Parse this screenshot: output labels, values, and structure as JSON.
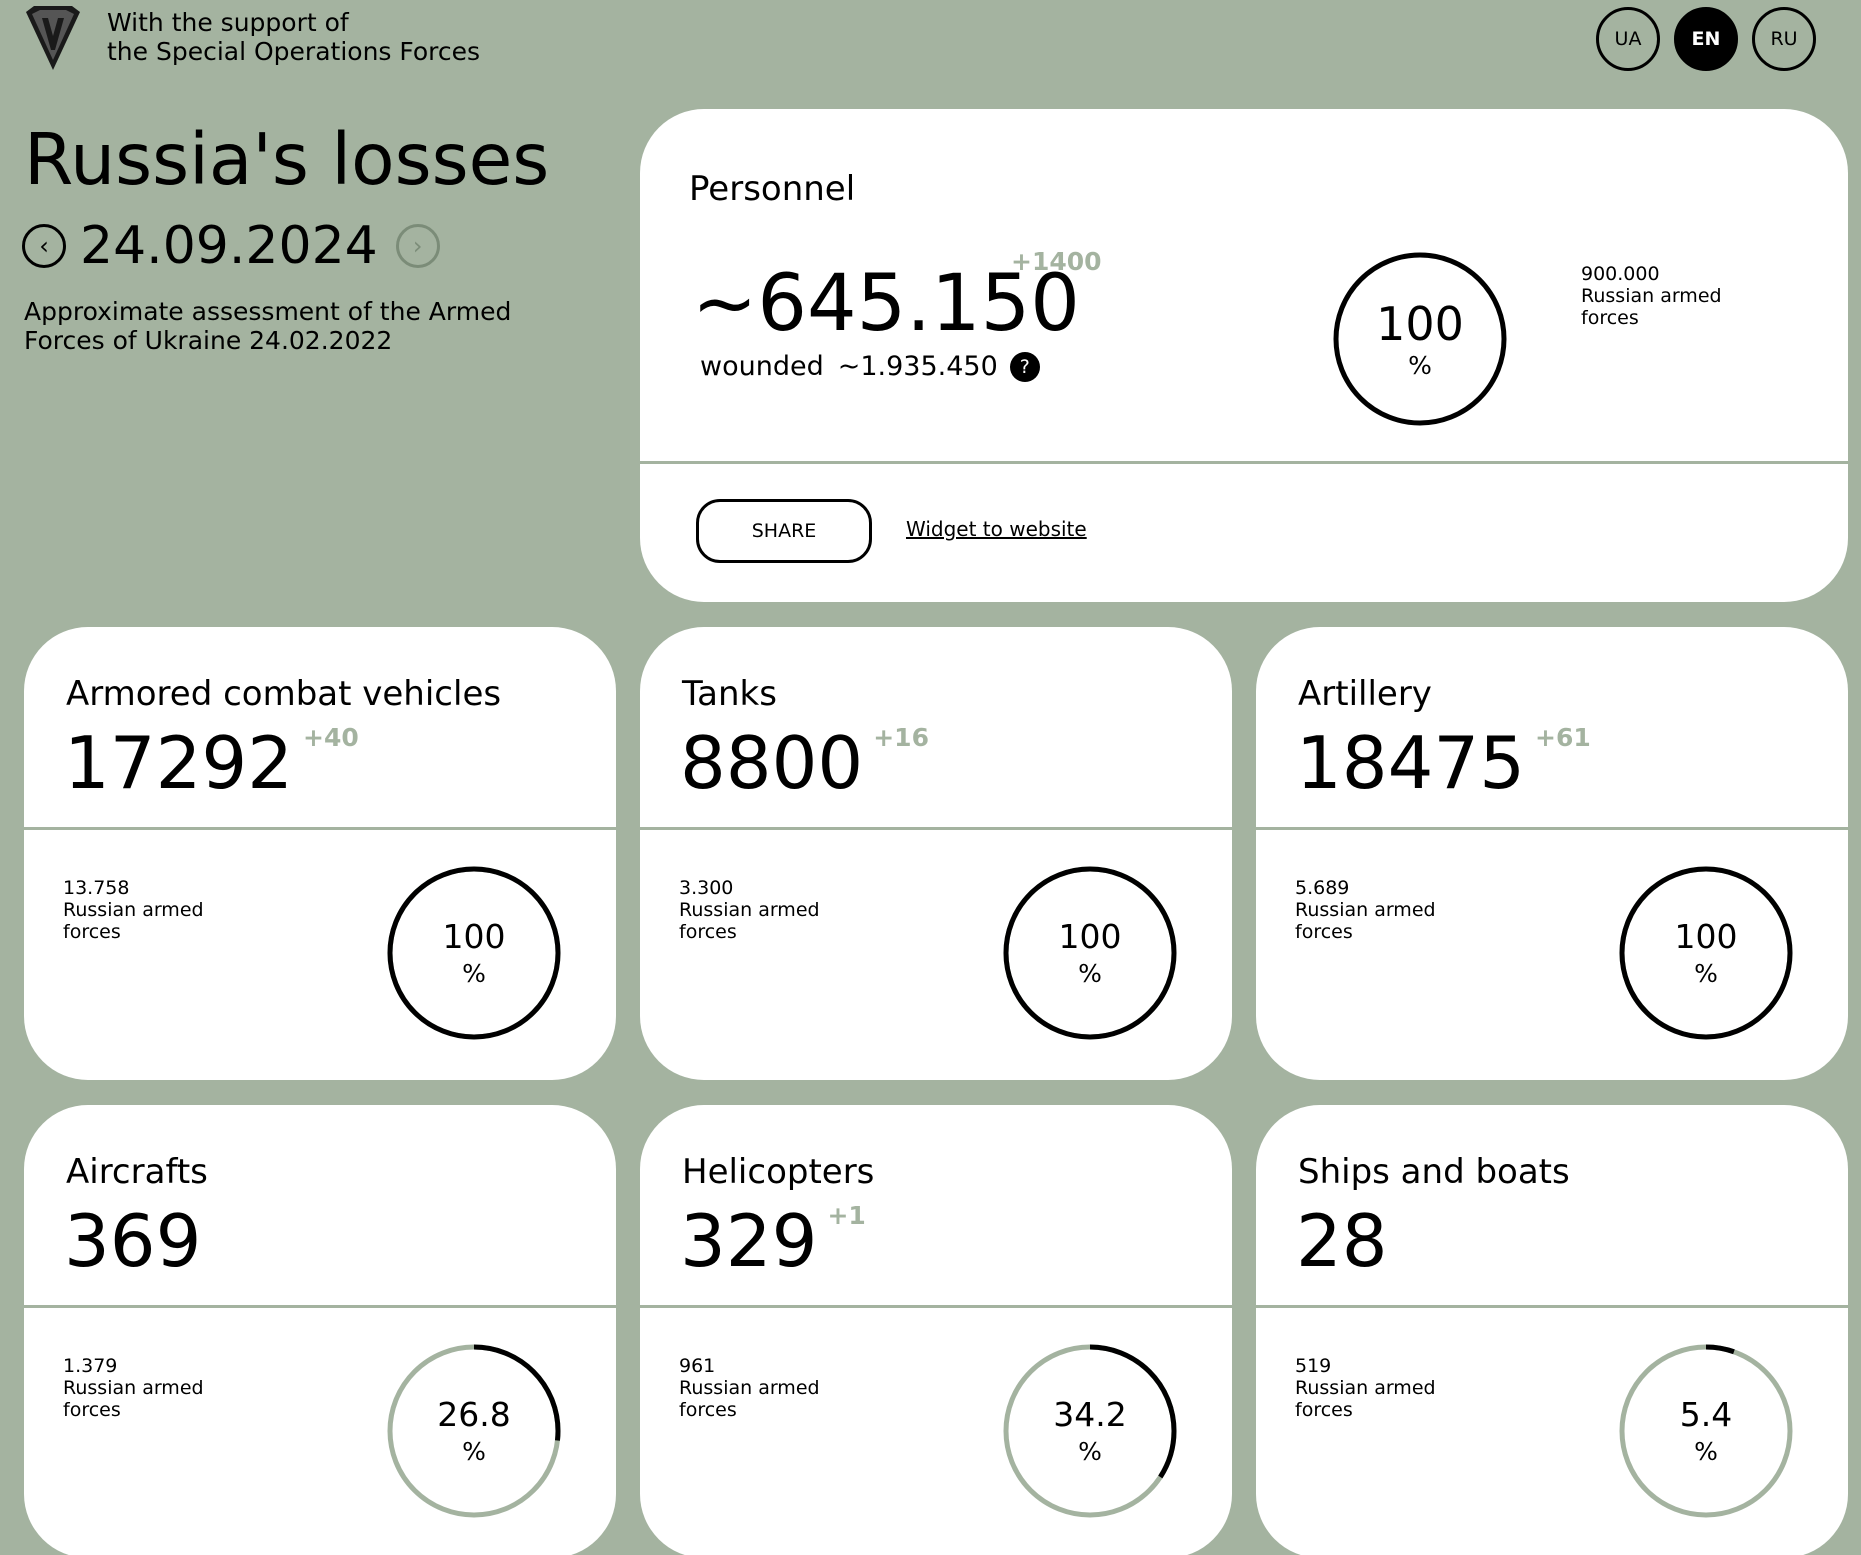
{
  "header": {
    "support_line1": "With the support of",
    "support_line2": "the Special Operations Forces",
    "languages": [
      {
        "label": "UA",
        "active": false
      },
      {
        "label": "EN",
        "active": true
      },
      {
        "label": "RU",
        "active": false
      }
    ]
  },
  "intro": {
    "title": "Russia's losses",
    "date": "24.09.2024",
    "assessment_line1": "Approximate assessment of the Armed",
    "assessment_line2": "Forces of Ukraine 24.02.2022"
  },
  "personnel": {
    "title": "Personnel",
    "value": "~645.150",
    "delta": "+1400",
    "wounded_label": "wounded",
    "wounded_value": "~1.935.450",
    "help_icon": "?",
    "base_value": "900.000",
    "base_line1": "Russian armed",
    "base_line2": "forces",
    "percent": "100",
    "percent_sign": "%",
    "share_label": "SHARE",
    "widget_label": "Widget to website"
  },
  "categories": [
    {
      "title": "Armored combat vehicles",
      "value": "17292",
      "delta": "+40",
      "base_value": "13.758",
      "base_line1": "Russian armed",
      "base_line2": "forces",
      "percent": "100",
      "fraction": 1.0
    },
    {
      "title": "Tanks",
      "value": "8800",
      "delta": "+16",
      "base_value": "3.300",
      "base_line1": "Russian armed",
      "base_line2": "forces",
      "percent": "100",
      "fraction": 1.0
    },
    {
      "title": "Artillery",
      "value": "18475",
      "delta": "+61",
      "base_value": "5.689",
      "base_line1": "Russian armed",
      "base_line2": "forces",
      "percent": "100",
      "fraction": 1.0
    },
    {
      "title": "Aircrafts",
      "value": "369",
      "delta": "",
      "base_value": "1.379",
      "base_line1": "Russian armed",
      "base_line2": "forces",
      "percent": "26.8",
      "fraction": 0.268
    },
    {
      "title": "Helicopters",
      "value": "329",
      "delta": "+1",
      "base_value": "961",
      "base_line1": "Russian armed",
      "base_line2": "forces",
      "percent": "34.2",
      "fraction": 0.342
    },
    {
      "title": "Ships and boats",
      "value": "28",
      "delta": "",
      "base_value": "519",
      "base_line1": "Russian armed",
      "base_line2": "forces",
      "percent": "5.4",
      "fraction": 0.054
    }
  ],
  "percent_sign": "%",
  "colors": {
    "background": "#a4b3a0",
    "card": "#ffffff",
    "ring_track": "#a4b3a0",
    "ring_fill": "#000000"
  }
}
